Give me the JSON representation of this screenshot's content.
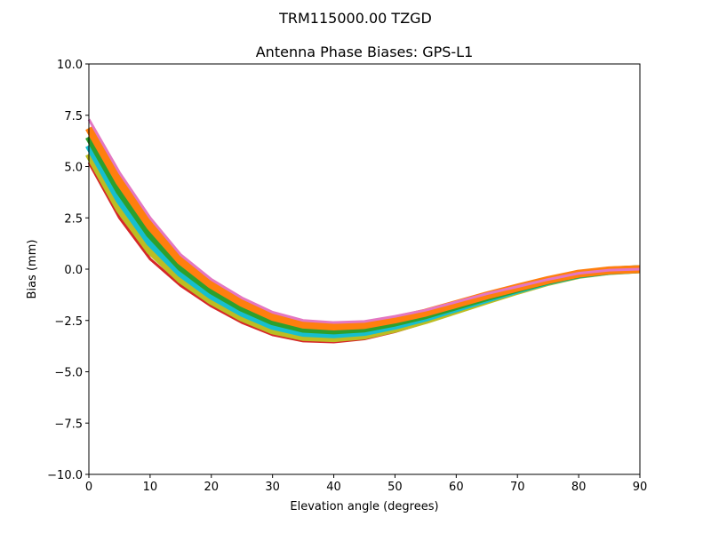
{
  "suptitle": "TRM115000.00    TZGD",
  "chart_data": {
    "type": "line",
    "title": "Antenna Phase Biases: GPS-L1",
    "xlabel": "Elevation angle (degrees)",
    "ylabel": "Bias (mm)",
    "xlim": [
      0,
      90
    ],
    "ylim": [
      -10,
      10
    ],
    "grid": false,
    "legend": "none",
    "xticks": [
      "0",
      "10",
      "20",
      "30",
      "40",
      "50",
      "60",
      "70",
      "80",
      "90"
    ],
    "yticks": [
      "−10.0",
      "−7.5",
      "−5.0",
      "−2.5",
      "0.0",
      "2.5",
      "5.0",
      "7.5",
      "10.0"
    ],
    "xtick_values": [
      0,
      10,
      20,
      30,
      40,
      50,
      60,
      70,
      80,
      90
    ],
    "ytick_values": [
      -10,
      -7.5,
      -5,
      -2.5,
      0,
      2.5,
      5,
      7.5,
      10
    ],
    "x": [
      0,
      5,
      10,
      15,
      20,
      25,
      30,
      35,
      40,
      45,
      50,
      55,
      60,
      65,
      70,
      75,
      80,
      85,
      90
    ],
    "series": [
      {
        "color": "#d62728",
        "values": [
          5.2,
          2.5,
          0.5,
          -0.8,
          -1.8,
          -2.6,
          -3.2,
          -3.5,
          -3.55,
          -3.4,
          -3.05,
          -2.6,
          -2.1,
          -1.6,
          -1.1,
          -0.65,
          -0.3,
          -0.1,
          0
        ]
      },
      {
        "color": "#bcbd22",
        "values": [
          5.62,
          2.94,
          0.9,
          -0.5,
          -1.54,
          -2.36,
          -2.98,
          -3.3,
          -3.36,
          -3.23,
          -2.9,
          -2.48,
          -2.0,
          -1.52,
          -1.05,
          -0.62,
          -0.28,
          -0.09,
          0
        ]
      },
      {
        "color": "#17becf",
        "values": [
          6.04,
          3.38,
          1.3,
          -0.2,
          -1.28,
          -2.12,
          -2.76,
          -3.1,
          -3.17,
          -3.06,
          -2.75,
          -2.36,
          -1.9,
          -1.44,
          -1.0,
          -0.59,
          -0.26,
          -0.08,
          0
        ]
      },
      {
        "color": "#2ca02c",
        "values": [
          6.46,
          3.82,
          1.7,
          0.1,
          -1.02,
          -1.88,
          -2.54,
          -2.9,
          -2.98,
          -2.89,
          -2.6,
          -2.24,
          -1.8,
          -1.36,
          -0.95,
          -0.56,
          -0.24,
          -0.07,
          0
        ]
      },
      {
        "color": "#ff7f0e",
        "values": [
          6.88,
          4.26,
          2.1,
          0.4,
          -0.76,
          -1.64,
          -2.32,
          -2.7,
          -2.79,
          -2.72,
          -2.45,
          -2.12,
          -1.7,
          -1.28,
          -0.9,
          -0.53,
          -0.22,
          -0.06,
          0
        ]
      },
      {
        "color": "#e377c2",
        "values": [
          7.3,
          4.7,
          2.5,
          0.7,
          -0.5,
          -1.4,
          -2.1,
          -2.5,
          -2.6,
          -2.55,
          -2.3,
          -2.0,
          -1.6,
          -1.2,
          -0.85,
          -0.5,
          -0.2,
          -0.05,
          0
        ]
      }
    ]
  }
}
